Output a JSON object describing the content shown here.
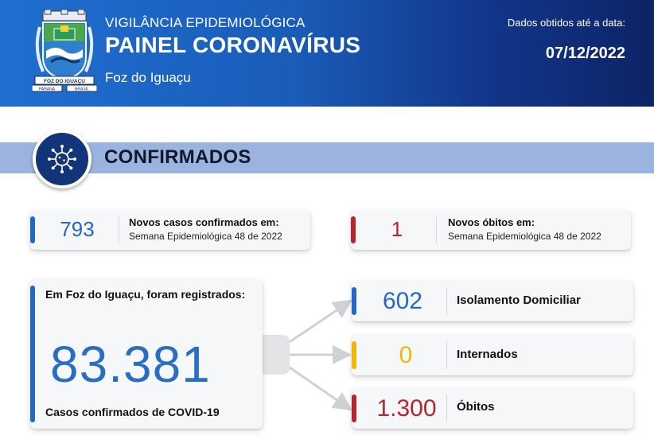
{
  "header": {
    "subtitle": "VIGILÂNCIA EPIDEMIOLÓGICA",
    "title": "PAINEL CORONAVÍRUS",
    "city": "Foz do Iguaçu",
    "date_label": "Dados obtidos até a data:",
    "date": "07/12/2022",
    "crest": {
      "banner_text": "FOZ DO IGUAÇU",
      "left_text": "PARANÁ",
      "right_text": "BRASIL"
    }
  },
  "section": {
    "title": "CONFIRMADOS",
    "icon": "virus-icon"
  },
  "new_cases": {
    "value": "793",
    "title": "Novos casos confirmados em:",
    "subtitle": "Semana Epidemiológica 48 de 2022"
  },
  "new_deaths": {
    "value": "1",
    "title": "Novos óbitos em:",
    "subtitle": "Semana Epidemiológica 48 de 2022"
  },
  "total": {
    "heading": "Em Foz do Iguaçu, foram registrados:",
    "value": "83.381",
    "caption": "Casos confirmados de COVID-19"
  },
  "breakdown": [
    {
      "value": "602",
      "label": "Isolamento Domiciliar",
      "color": "#2567c4"
    },
    {
      "value": "0",
      "label": "Internados",
      "color": "#f2b705"
    },
    {
      "value": "1.300",
      "label": "Óbitos",
      "color": "#b3262d"
    }
  ],
  "colors": {
    "header_start": "#1f6fd1",
    "header_end": "#0d2466",
    "section_bar": "#9bb4df",
    "icon_circle": "#12357a",
    "blue": "#2567c4",
    "red": "#b3262d",
    "yellow": "#f2b705"
  }
}
